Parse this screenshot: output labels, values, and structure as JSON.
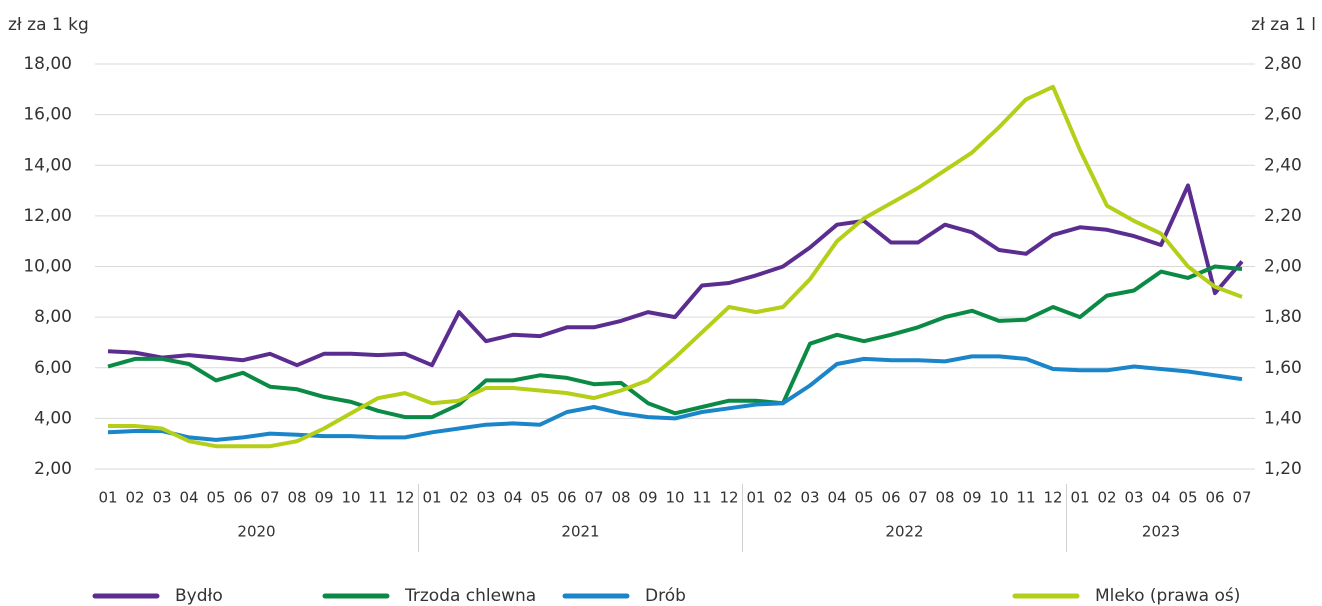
{
  "chart_data": {
    "type": "line",
    "y_axis_label": "zł za 1 kg",
    "y2_axis_label": "zł za 1 l",
    "categories": [
      "01",
      "02",
      "03",
      "04",
      "05",
      "06",
      "07",
      "08",
      "09",
      "10",
      "11",
      "12",
      "01",
      "02",
      "03",
      "04",
      "05",
      "06",
      "07",
      "08",
      "09",
      "10",
      "11",
      "12",
      "01",
      "02",
      "03",
      "04",
      "05",
      "06",
      "07",
      "08",
      "09",
      "10",
      "11",
      "12",
      "01",
      "02",
      "03",
      "04",
      "05",
      "06",
      "07"
    ],
    "category_groups": [
      "2020",
      "2021",
      "2022",
      "2023"
    ],
    "ylim": [
      2,
      18
    ],
    "yticks": [
      {
        "value": 2,
        "label": "2,00"
      },
      {
        "value": 4,
        "label": "4,00"
      },
      {
        "value": 6,
        "label": "6,00"
      },
      {
        "value": 8,
        "label": "8,00"
      },
      {
        "value": 10,
        "label": "10,00"
      },
      {
        "value": 12,
        "label": "12,00"
      },
      {
        "value": 14,
        "label": "14,00"
      },
      {
        "value": 16,
        "label": "16,00"
      },
      {
        "value": 18,
        "label": "18,00"
      }
    ],
    "y2lim": [
      1.2,
      2.8
    ],
    "y2ticks": [
      {
        "value": 1.2,
        "label": "1,20"
      },
      {
        "value": 1.4,
        "label": "1,40"
      },
      {
        "value": 1.6,
        "label": "1,60"
      },
      {
        "value": 1.8,
        "label": "1,80"
      },
      {
        "value": 2.0,
        "label": "2,00"
      },
      {
        "value": 2.2,
        "label": "2,20"
      },
      {
        "value": 2.4,
        "label": "2,40"
      },
      {
        "value": 2.6,
        "label": "2,60"
      },
      {
        "value": 2.8,
        "label": "2,80"
      }
    ],
    "grid": true,
    "series": [
      {
        "name": "Bydło",
        "color": "#5b2d90",
        "values": [
          6.65,
          6.6,
          6.4,
          6.5,
          6.4,
          6.3,
          6.55,
          6.1,
          6.55,
          6.55,
          6.5,
          6.55,
          6.1,
          8.2,
          7.05,
          7.3,
          7.25,
          7.6,
          7.6,
          7.85,
          8.2,
          8.0,
          9.25,
          9.35,
          9.65,
          10.0,
          10.75,
          11.65,
          11.8,
          10.95,
          10.95,
          11.65,
          11.35,
          10.65,
          10.5,
          11.25,
          11.55,
          11.45,
          11.2,
          10.85,
          13.2,
          8.95,
          10.2
        ]
      },
      {
        "name": "Trzoda chlewna",
        "color": "#0a8a44",
        "values": [
          6.05,
          6.35,
          6.35,
          6.15,
          5.5,
          5.8,
          5.25,
          5.15,
          4.85,
          4.65,
          4.3,
          4.05,
          4.05,
          4.55,
          5.5,
          5.5,
          5.7,
          5.6,
          5.35,
          5.4,
          4.6,
          4.2,
          4.45,
          4.7,
          4.7,
          4.6,
          6.95,
          7.3,
          7.05,
          7.3,
          7.6,
          8.0,
          8.25,
          7.85,
          7.9,
          8.4,
          8.0,
          8.85,
          9.05,
          9.8,
          9.55,
          10.0,
          9.9
        ]
      },
      {
        "name": "Drób",
        "color": "#1a85c8",
        "values": [
          3.45,
          3.5,
          3.5,
          3.25,
          3.15,
          3.25,
          3.4,
          3.35,
          3.3,
          3.3,
          3.25,
          3.25,
          3.45,
          3.6,
          3.75,
          3.8,
          3.75,
          4.25,
          4.45,
          4.2,
          4.05,
          4.0,
          4.25,
          4.4,
          4.55,
          4.6,
          5.3,
          6.15,
          6.35,
          6.3,
          6.3,
          6.25,
          6.45,
          6.45,
          6.35,
          5.95,
          5.9,
          5.9,
          6.05,
          5.95,
          5.85,
          5.7,
          5.55
        ]
      },
      {
        "name": "Mleko (prawa oś)",
        "color": "#b5cf19",
        "axis": "y2",
        "values": [
          1.37,
          1.37,
          1.36,
          1.31,
          1.29,
          1.29,
          1.29,
          1.31,
          1.36,
          1.42,
          1.48,
          1.5,
          1.46,
          1.47,
          1.52,
          1.52,
          1.51,
          1.5,
          1.48,
          1.51,
          1.55,
          1.64,
          1.74,
          1.84,
          1.82,
          1.84,
          1.95,
          2.1,
          2.19,
          2.25,
          2.31,
          2.38,
          2.45,
          2.55,
          2.66,
          2.71,
          2.46,
          2.24,
          2.18,
          2.13,
          2.0,
          1.92,
          1.88
        ]
      }
    ]
  }
}
